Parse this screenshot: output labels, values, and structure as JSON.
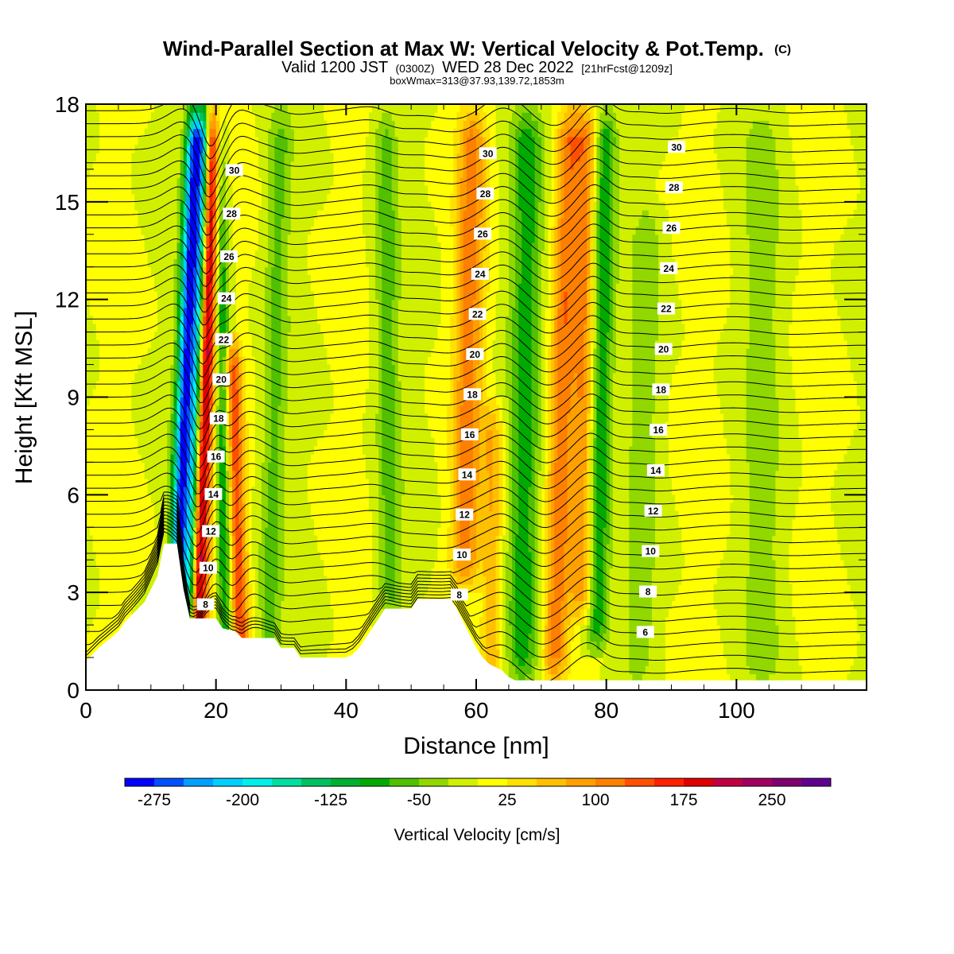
{
  "chart_data": {
    "type": "heatmap",
    "title": "Wind-Parallel Section at Max W: Vertical Velocity & Pot.Temp.",
    "title_mark": "(C)",
    "subtitle_main": "Valid 1200 JST",
    "subtitle_utc": "(0300Z)",
    "subtitle_date": "WED 28 Dec 2022",
    "subtitle_fcst": "[21hrFcst@1209z]",
    "subtitle2": "boxWmax=313@37.93,139.72,1853m",
    "xlabel": "Distance [nm]",
    "ylabel": "Height [Kft MSL]",
    "xlim": [
      0,
      120
    ],
    "ylim": [
      0,
      18
    ],
    "xticks": [
      "0",
      "20",
      "40",
      "60",
      "80",
      "100"
    ],
    "yticks": [
      "0",
      "3",
      "6",
      "9",
      "12",
      "15",
      "18"
    ],
    "colorbar": {
      "label": "Vertical Velocity [cm/s]",
      "tick_labels": [
        "-275",
        "-200",
        "-125",
        "-50",
        "25",
        "100",
        "175",
        "250"
      ],
      "colors": [
        "#0000ff",
        "#0050ff",
        "#00a0ff",
        "#00d0ff",
        "#00f0e8",
        "#00e0a0",
        "#00c060",
        "#00b030",
        "#00aa00",
        "#50c000",
        "#90d800",
        "#d0f000",
        "#ffff00",
        "#ffe000",
        "#ffc000",
        "#ffa000",
        "#ff8000",
        "#ff5000",
        "#ff2000",
        "#e00000",
        "#c00040",
        "#a00060",
        "#800070",
        "#600090"
      ]
    },
    "theta_contour_labels": [
      "6",
      "8",
      "10",
      "12",
      "14",
      "16",
      "18",
      "20",
      "22",
      "24",
      "26",
      "28",
      "30"
    ],
    "updraft_cores_nm": [
      19,
      24,
      59,
      73,
      77
    ],
    "downdraft_cores_nm": [
      14,
      21,
      68,
      80
    ],
    "terrain_kft": {
      "x": [
        0,
        1,
        2,
        5,
        6,
        7,
        8,
        9,
        10,
        11,
        12,
        14,
        15,
        16,
        20,
        21,
        23,
        24,
        29,
        30,
        32,
        33,
        40,
        41,
        42,
        43,
        44,
        45,
        46,
        47,
        50,
        51,
        56,
        57,
        58,
        59,
        60,
        61,
        62,
        64,
        65,
        66,
        118,
        120
      ],
      "y": [
        0.9,
        1.1,
        1.3,
        1.8,
        2.1,
        2.3,
        2.5,
        2.7,
        3.1,
        3.5,
        4.5,
        4.5,
        3.1,
        2.2,
        2.2,
        1.9,
        1.8,
        1.6,
        1.6,
        1.3,
        1.3,
        1.0,
        1.0,
        1.1,
        1.3,
        1.6,
        1.9,
        2.2,
        2.5,
        2.5,
        2.5,
        2.8,
        2.8,
        2.5,
        2.1,
        1.7,
        1.3,
        1.0,
        0.8,
        0.6,
        0.4,
        0.3,
        0.3,
        0.3
      ]
    }
  }
}
